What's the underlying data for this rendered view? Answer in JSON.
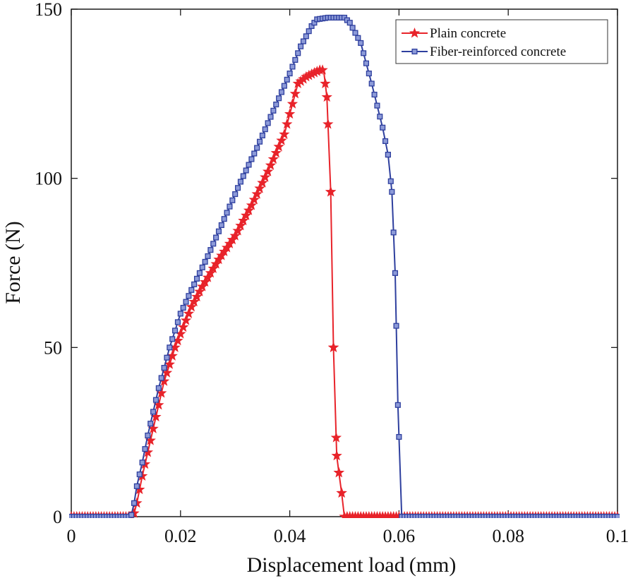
{
  "chart_data": {
    "type": "line",
    "title": "",
    "xlabel": "Displacement load (mm)",
    "ylabel": "Force (N)",
    "xlim": [
      0,
      0.1
    ],
    "ylim": [
      0,
      150
    ],
    "xticks": [
      0,
      0.02,
      0.04,
      0.06,
      0.08,
      0.1
    ],
    "xtick_labels": [
      "0",
      "0.02",
      "0.04",
      "0.06",
      "0.08",
      "0.1"
    ],
    "yticks": [
      0,
      50,
      100,
      150
    ],
    "ytick_labels": [
      "0",
      "50",
      "100",
      "150"
    ],
    "grid": false,
    "legend_position": "top-right",
    "series": [
      {
        "name": "Plain concrete",
        "color": "#e8232a",
        "marker": "star",
        "anchors": [
          [
            0,
            0
          ],
          [
            0.011,
            0
          ],
          [
            0.0115,
            1
          ],
          [
            0.012,
            4
          ],
          [
            0.013,
            12
          ],
          [
            0.014,
            19
          ],
          [
            0.015,
            26
          ],
          [
            0.016,
            33
          ],
          [
            0.017,
            40
          ],
          [
            0.018,
            45
          ],
          [
            0.019,
            50
          ],
          [
            0.02,
            54
          ],
          [
            0.022,
            62
          ],
          [
            0.024,
            68
          ],
          [
            0.027,
            76
          ],
          [
            0.03,
            83
          ],
          [
            0.033,
            92
          ],
          [
            0.036,
            102
          ],
          [
            0.039,
            113
          ],
          [
            0.0415,
            128
          ],
          [
            0.043,
            130
          ],
          [
            0.0455,
            132
          ],
          [
            0.0462,
            132
          ],
          [
            0.0468,
            124
          ],
          [
            0.0475,
            96
          ],
          [
            0.048,
            50
          ],
          [
            0.0486,
            18
          ],
          [
            0.049,
            13
          ],
          [
            0.0495,
            7
          ],
          [
            0.05,
            0
          ],
          [
            0.1,
            0
          ]
        ],
        "markers": [
          [
            0.0468,
            124
          ],
          [
            0.0475,
            96
          ],
          [
            0.048,
            50
          ],
          [
            0.0486,
            18
          ],
          [
            0.049,
            13
          ],
          [
            0.0495,
            7
          ]
        ]
      },
      {
        "name": "Fiber-reinforced concrete",
        "color": "#2e3f9e",
        "marker": "square",
        "anchors": [
          [
            0,
            0
          ],
          [
            0.0105,
            0
          ],
          [
            0.011,
            0.5
          ],
          [
            0.0115,
            4
          ],
          [
            0.012,
            9
          ],
          [
            0.013,
            16
          ],
          [
            0.014,
            24
          ],
          [
            0.015,
            31
          ],
          [
            0.016,
            38
          ],
          [
            0.017,
            44
          ],
          [
            0.018,
            50
          ],
          [
            0.019,
            55
          ],
          [
            0.02,
            60
          ],
          [
            0.022,
            67
          ],
          [
            0.025,
            77
          ],
          [
            0.028,
            88
          ],
          [
            0.031,
            99
          ],
          [
            0.034,
            109
          ],
          [
            0.037,
            120
          ],
          [
            0.04,
            131
          ],
          [
            0.042,
            139
          ],
          [
            0.044,
            145
          ],
          [
            0.045,
            147
          ],
          [
            0.047,
            147.5
          ],
          [
            0.05,
            147.5
          ],
          [
            0.051,
            146
          ],
          [
            0.053,
            140
          ],
          [
            0.055,
            128
          ],
          [
            0.057,
            115
          ],
          [
            0.058,
            107
          ],
          [
            0.0587,
            96
          ],
          [
            0.0593,
            72
          ],
          [
            0.0598,
            33
          ],
          [
            0.0605,
            0
          ],
          [
            0.1,
            0
          ]
        ],
        "markers": [
          [
            0.058,
            107
          ],
          [
            0.0587,
            96
          ],
          [
            0.0593,
            72
          ],
          [
            0.0598,
            33
          ]
        ]
      }
    ]
  }
}
